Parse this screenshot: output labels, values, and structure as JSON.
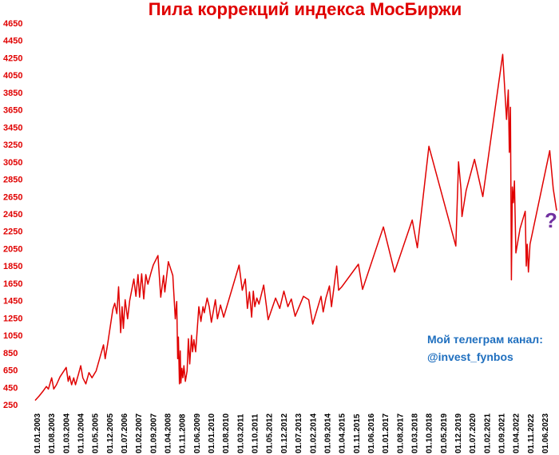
{
  "title": "Пила коррекций индекса МосБиржи",
  "note": {
    "line1": "Мой телеграм канал:",
    "line2": "@invest_fynbos"
  },
  "annotation": "?",
  "colors": {
    "line": "#e00000",
    "title": "#e00000",
    "ytick": "#e00000",
    "note": "#1f6fbf",
    "question": "#7030a0"
  },
  "chart_data": {
    "type": "line",
    "title": "Пила коррекций индекса МосБиржи",
    "xlabel": "",
    "ylabel": "",
    "ylim": [
      250,
      4650
    ],
    "y_ticks": [
      250,
      450,
      650,
      850,
      1050,
      1250,
      1450,
      1650,
      1850,
      2050,
      2250,
      2450,
      2650,
      2850,
      3050,
      3250,
      3450,
      3650,
      3850,
      4050,
      4250,
      4450,
      4650
    ],
    "x_ticks": [
      "01.01.2003",
      "01.08.2003",
      "01.03.2004",
      "01.10.2004",
      "01.05.2005",
      "01.12.2005",
      "01.07.2006",
      "01.02.2007",
      "01.09.2007",
      "01.04.2008",
      "01.11.2008",
      "01.06.2009",
      "01.01.2010",
      "01.08.2010",
      "01.03.2011",
      "01.10.2011",
      "01.05.2012",
      "01.12.2012",
      "01.07.2013",
      "01.02.2014",
      "01.09.2014",
      "01.04.2015",
      "01.11.2015",
      "01.06.2016",
      "01.01.2017",
      "01.08.2017",
      "01.03.2018",
      "01.10.2018",
      "01.05.2019",
      "01.12.2019",
      "01.07.2020",
      "01.02.2021",
      "01.09.2021",
      "01.04.2022",
      "01.11.2022",
      "01.06.2023"
    ],
    "grid": false,
    "legend": "none",
    "x_format": "date",
    "x_range": [
      "2003-01-01",
      "2024-01-01"
    ],
    "series": [
      {
        "points": [
          [
            "2003-01-01",
            300
          ],
          [
            "2003-03-01",
            350
          ],
          [
            "2003-05-01",
            410
          ],
          [
            "2003-06-15",
            460
          ],
          [
            "2003-07-15",
            430
          ],
          [
            "2003-09-01",
            560
          ],
          [
            "2003-10-01",
            430
          ],
          [
            "2003-11-10",
            480
          ],
          [
            "2004-01-01",
            570
          ],
          [
            "2004-04-01",
            680
          ],
          [
            "2004-05-01",
            520
          ],
          [
            "2004-05-20",
            580
          ],
          [
            "2004-06-20",
            480
          ],
          [
            "2004-07-20",
            560
          ],
          [
            "2004-08-15",
            480
          ],
          [
            "2004-10-01",
            610
          ],
          [
            "2004-11-01",
            700
          ],
          [
            "2004-12-01",
            560
          ],
          [
            "2005-01-15",
            490
          ],
          [
            "2005-03-01",
            620
          ],
          [
            "2005-04-15",
            560
          ],
          [
            "2005-06-15",
            640
          ],
          [
            "2005-10-01",
            940
          ],
          [
            "2005-10-25",
            780
          ],
          [
            "2005-12-01",
            950
          ],
          [
            "2006-02-15",
            1350
          ],
          [
            "2006-03-15",
            1420
          ],
          [
            "2006-04-15",
            1300
          ],
          [
            "2006-05-10",
            1610
          ],
          [
            "2006-06-10",
            1080
          ],
          [
            "2006-07-01",
            1380
          ],
          [
            "2006-07-20",
            1130
          ],
          [
            "2006-08-15",
            1460
          ],
          [
            "2006-09-20",
            1240
          ],
          [
            "2006-10-20",
            1450
          ],
          [
            "2006-12-20",
            1700
          ],
          [
            "2007-01-20",
            1500
          ],
          [
            "2007-02-20",
            1750
          ],
          [
            "2007-03-15",
            1490
          ],
          [
            "2007-04-15",
            1760
          ],
          [
            "2007-05-15",
            1470
          ],
          [
            "2007-06-15",
            1750
          ],
          [
            "2007-07-15",
            1640
          ],
          [
            "2007-09-01",
            1780
          ],
          [
            "2007-10-01",
            1860
          ],
          [
            "2007-12-10",
            1970
          ],
          [
            "2008-01-20",
            1490
          ],
          [
            "2008-03-01",
            1740
          ],
          [
            "2008-03-20",
            1550
          ],
          [
            "2008-05-10",
            1900
          ],
          [
            "2008-07-15",
            1740
          ],
          [
            "2008-08-20",
            1240
          ],
          [
            "2008-09-10",
            1440
          ],
          [
            "2008-09-25",
            780
          ],
          [
            "2008-10-05",
            1030
          ],
          [
            "2008-10-20",
            490
          ],
          [
            "2008-11-01",
            870
          ],
          [
            "2008-11-10",
            500
          ],
          [
            "2008-11-25",
            670
          ],
          [
            "2008-12-10",
            560
          ],
          [
            "2008-12-25",
            700
          ],
          [
            "2009-01-15",
            520
          ],
          [
            "2009-02-10",
            640
          ],
          [
            "2009-03-01",
            1010
          ],
          [
            "2009-03-20",
            720
          ],
          [
            "2009-04-15",
            1050
          ],
          [
            "2009-05-01",
            860
          ],
          [
            "2009-05-20",
            1000
          ],
          [
            "2009-06-15",
            860
          ],
          [
            "2009-08-01",
            1380
          ],
          [
            "2009-09-01",
            1210
          ],
          [
            "2009-10-01",
            1380
          ],
          [
            "2009-10-20",
            1310
          ],
          [
            "2009-12-01",
            1480
          ],
          [
            "2010-01-01",
            1380
          ],
          [
            "2010-02-01",
            1200
          ],
          [
            "2010-04-01",
            1460
          ],
          [
            "2010-05-01",
            1240
          ],
          [
            "2010-06-15",
            1400
          ],
          [
            "2010-08-01",
            1260
          ],
          [
            "2011-03-15",
            1860
          ],
          [
            "2011-05-01",
            1570
          ],
          [
            "2011-06-15",
            1700
          ],
          [
            "2011-07-15",
            1360
          ],
          [
            "2011-08-15",
            1550
          ],
          [
            "2011-09-15",
            1260
          ],
          [
            "2011-10-10",
            1560
          ],
          [
            "2011-11-01",
            1380
          ],
          [
            "2011-12-01",
            1480
          ],
          [
            "2012-01-01",
            1410
          ],
          [
            "2012-03-10",
            1630
          ],
          [
            "2012-05-15",
            1230
          ],
          [
            "2012-09-01",
            1480
          ],
          [
            "2012-11-01",
            1360
          ],
          [
            "2013-01-01",
            1560
          ],
          [
            "2013-03-01",
            1380
          ],
          [
            "2013-04-20",
            1470
          ],
          [
            "2013-06-15",
            1270
          ],
          [
            "2013-10-15",
            1500
          ],
          [
            "2014-01-01",
            1460
          ],
          [
            "2014-03-01",
            1180
          ],
          [
            "2014-07-01",
            1500
          ],
          [
            "2014-08-01",
            1320
          ],
          [
            "2014-09-10",
            1480
          ],
          [
            "2014-11-01",
            1620
          ],
          [
            "2014-12-01",
            1380
          ],
          [
            "2015-02-15",
            1850
          ],
          [
            "2015-03-15",
            1570
          ],
          [
            "2015-05-01",
            1610
          ],
          [
            "2016-01-01",
            1870
          ],
          [
            "2016-03-01",
            1580
          ],
          [
            "2017-01-01",
            2300
          ],
          [
            "2017-06-15",
            1780
          ],
          [
            "2018-03-01",
            2380
          ],
          [
            "2018-05-15",
            2060
          ],
          [
            "2018-11-01",
            3230
          ],
          [
            "2019-12-01",
            2080
          ],
          [
            "2020-01-10",
            3050
          ],
          [
            "2020-02-15",
            2730
          ],
          [
            "2020-03-01",
            2420
          ],
          [
            "2020-05-01",
            2720
          ],
          [
            "2020-09-01",
            3080
          ],
          [
            "2021-01-01",
            2650
          ],
          [
            "2021-10-20",
            4290
          ],
          [
            "2021-12-15",
            3540
          ],
          [
            "2022-01-10",
            3880
          ],
          [
            "2022-01-25",
            3160
          ],
          [
            "2022-02-10",
            3680
          ],
          [
            "2022-02-24",
            1690
          ],
          [
            "2022-03-10",
            2760
          ],
          [
            "2022-03-25",
            2580
          ],
          [
            "2022-04-10",
            2830
          ],
          [
            "2022-05-01",
            2000
          ],
          [
            "2022-07-01",
            2280
          ],
          [
            "2022-09-15",
            2480
          ],
          [
            "2022-10-01",
            1850
          ],
          [
            "2022-10-15",
            2100
          ],
          [
            "2022-11-01",
            1780
          ],
          [
            "2022-11-25",
            2100
          ],
          [
            "2023-09-10",
            3180
          ],
          [
            "2023-11-01",
            2740
          ],
          [
            "2023-12-20",
            2490
          ]
        ]
      }
    ]
  }
}
